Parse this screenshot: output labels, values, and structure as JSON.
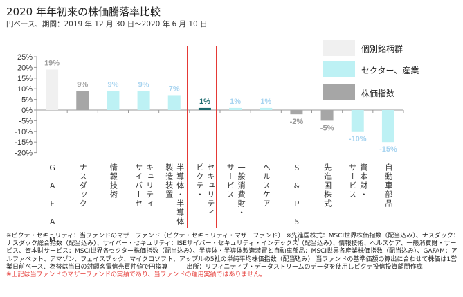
{
  "header": {
    "title": "2020 年年初来の株価騰落率比較",
    "subtitle": "円ベース、期間：2019 年 12 月 30 日～2020 年 6 月 10 日"
  },
  "colors": {
    "individual": "#f0f0f0",
    "sector": "#bdf1f4",
    "index": "#a6a6a6",
    "pictet": "#1b6a6e",
    "sector_label": "#a8d4f0",
    "index_label": "#999999",
    "individual_label": "#a0a0a0",
    "highlight_box": "#e53935"
  },
  "chart_data": {
    "type": "bar",
    "title": "2020 年年初来の株価騰落率比較",
    "xlabel": "",
    "ylabel": "",
    "ylim": [
      -20,
      25
    ],
    "yticks": [
      "25%",
      "20%",
      "15%",
      "10%",
      "5%",
      "0%",
      "-5%",
      "-10%",
      "-15%",
      "-20%"
    ],
    "ytick_values": [
      25,
      20,
      15,
      10,
      5,
      0,
      -5,
      -10,
      -15,
      -20
    ],
    "categories": [
      "G\nA\nF\nA\nM",
      "ナスダック",
      "情報技術",
      "キュリティ\nサイバーセ",
      "半導体・半導体\n製造装置",
      "セキュリティ\nピクテ・",
      "一般消費財・\nサービス",
      "ヘルスケア",
      "S\n&\nP\n5\n0\n0",
      "先進国株式",
      "資本財・\nサービス",
      "自動車部品"
    ],
    "values": [
      19,
      9,
      9,
      9,
      7,
      1,
      1,
      1,
      -2,
      -5,
      -10,
      -15
    ],
    "labels": [
      "19%",
      "9%",
      "9%",
      "9%",
      "7%",
      "1%",
      "1%",
      "1%",
      "-2%",
      "-5%",
      "-10%",
      "-15%"
    ],
    "groups": [
      "individual",
      "index",
      "sector",
      "sector",
      "sector",
      "pictet",
      "sector",
      "sector",
      "index",
      "index",
      "sector",
      "sector"
    ],
    "highlight": "ピクテ・セキュリティ",
    "legend": [
      {
        "label": "個別銘柄群",
        "group": "individual"
      },
      {
        "label": "セクター、産業",
        "group": "sector"
      },
      {
        "label": "株価指数",
        "group": "index"
      }
    ],
    "legend_position": "top-right",
    "grid": false
  },
  "notes": {
    "body": "※ピクテ・セキュリティ：当ファンドのマザーファンド（ピクテ・セキュリティ・マザーファンド） ※先進国株式：MSCI世界株価指数（配当込み）、ナスダック：ナスダック総合指数（配当込み）、サイバー・セキュリティ：ISEサイバー・セキュリティ・インデックス（配当込み）、情報技術、ヘルスケア、一般消費財・サービス、資本財サービス：MSCI世界各セクター株価指数（配当込み）、半導体・半導体製造装置と自動車部品：MSCI世界各産業株価指数（配当込み）、GAFAM：アルファベット、アマゾン、フェイスブック、マイクロソフト、アップルの5社の単純平均株価指数（配当込み） 当ファンドの基準価額の算出に合わせて株価は1営業日前ベース、為替は当日の対顧客電信売買仲値で円換算　　　出所：リフィニティブ・データストリームのデータを使用しピクテ投信投資顧問作成",
    "disclaimer": "※上記は当ファンドのマザーファンドの実績であり、当ファンドの運用実績ではありません。"
  }
}
